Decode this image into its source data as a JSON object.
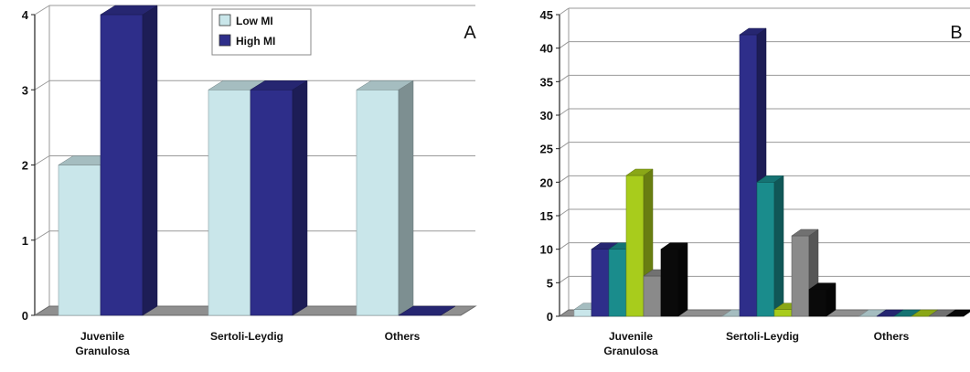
{
  "colors": {
    "low": "#c9e6ea",
    "high": "#2e2e8a",
    "teal": "#1a8c8c",
    "lime": "#a8cc1c",
    "gray": "#8a8a8a",
    "black": "#0a0a0a",
    "grid": "#9a9a9a",
    "floor": "#8f8f8f"
  },
  "chart_data": [
    {
      "panel_label": "A",
      "type": "bar",
      "categories": [
        "Juvenile Granulosa",
        "Sertoli-Leydig",
        "Others"
      ],
      "category_lines": [
        [
          "Juvenile",
          "Granulosa"
        ],
        [
          "Sertoli-Leydig"
        ],
        [
          "Others"
        ]
      ],
      "series": [
        {
          "name": "Low MI",
          "color_key": "low",
          "values": [
            2,
            3,
            3
          ]
        },
        {
          "name": "High MI",
          "color_key": "high",
          "values": [
            4,
            3,
            0
          ]
        }
      ],
      "yticks": [
        "0",
        "1",
        "2",
        "3",
        "4"
      ],
      "ylim": [
        0,
        4
      ],
      "legend_position": "top-center",
      "grid": true
    },
    {
      "panel_label": "B",
      "type": "bar",
      "categories": [
        "Juvenile Granulosa",
        "Sertoli-Leydig",
        "Others"
      ],
      "category_lines": [
        [
          "Juvenile",
          "Granulosa"
        ],
        [
          "Sertoli-Leydig"
        ],
        [
          "Others"
        ]
      ],
      "series": [
        {
          "color_key": "low",
          "values": [
            1,
            0,
            0
          ]
        },
        {
          "color_key": "high",
          "values": [
            10,
            42,
            0
          ]
        },
        {
          "color_key": "teal",
          "values": [
            10,
            20,
            0
          ]
        },
        {
          "color_key": "lime",
          "values": [
            21,
            1,
            0
          ]
        },
        {
          "color_key": "gray",
          "values": [
            6,
            12,
            0
          ]
        },
        {
          "color_key": "black",
          "values": [
            10,
            4,
            0
          ]
        }
      ],
      "yticks": [
        "0",
        "5",
        "10",
        "15",
        "20",
        "25",
        "30",
        "35",
        "40",
        "45"
      ],
      "ylim": [
        0,
        45
      ],
      "grid": true
    }
  ]
}
